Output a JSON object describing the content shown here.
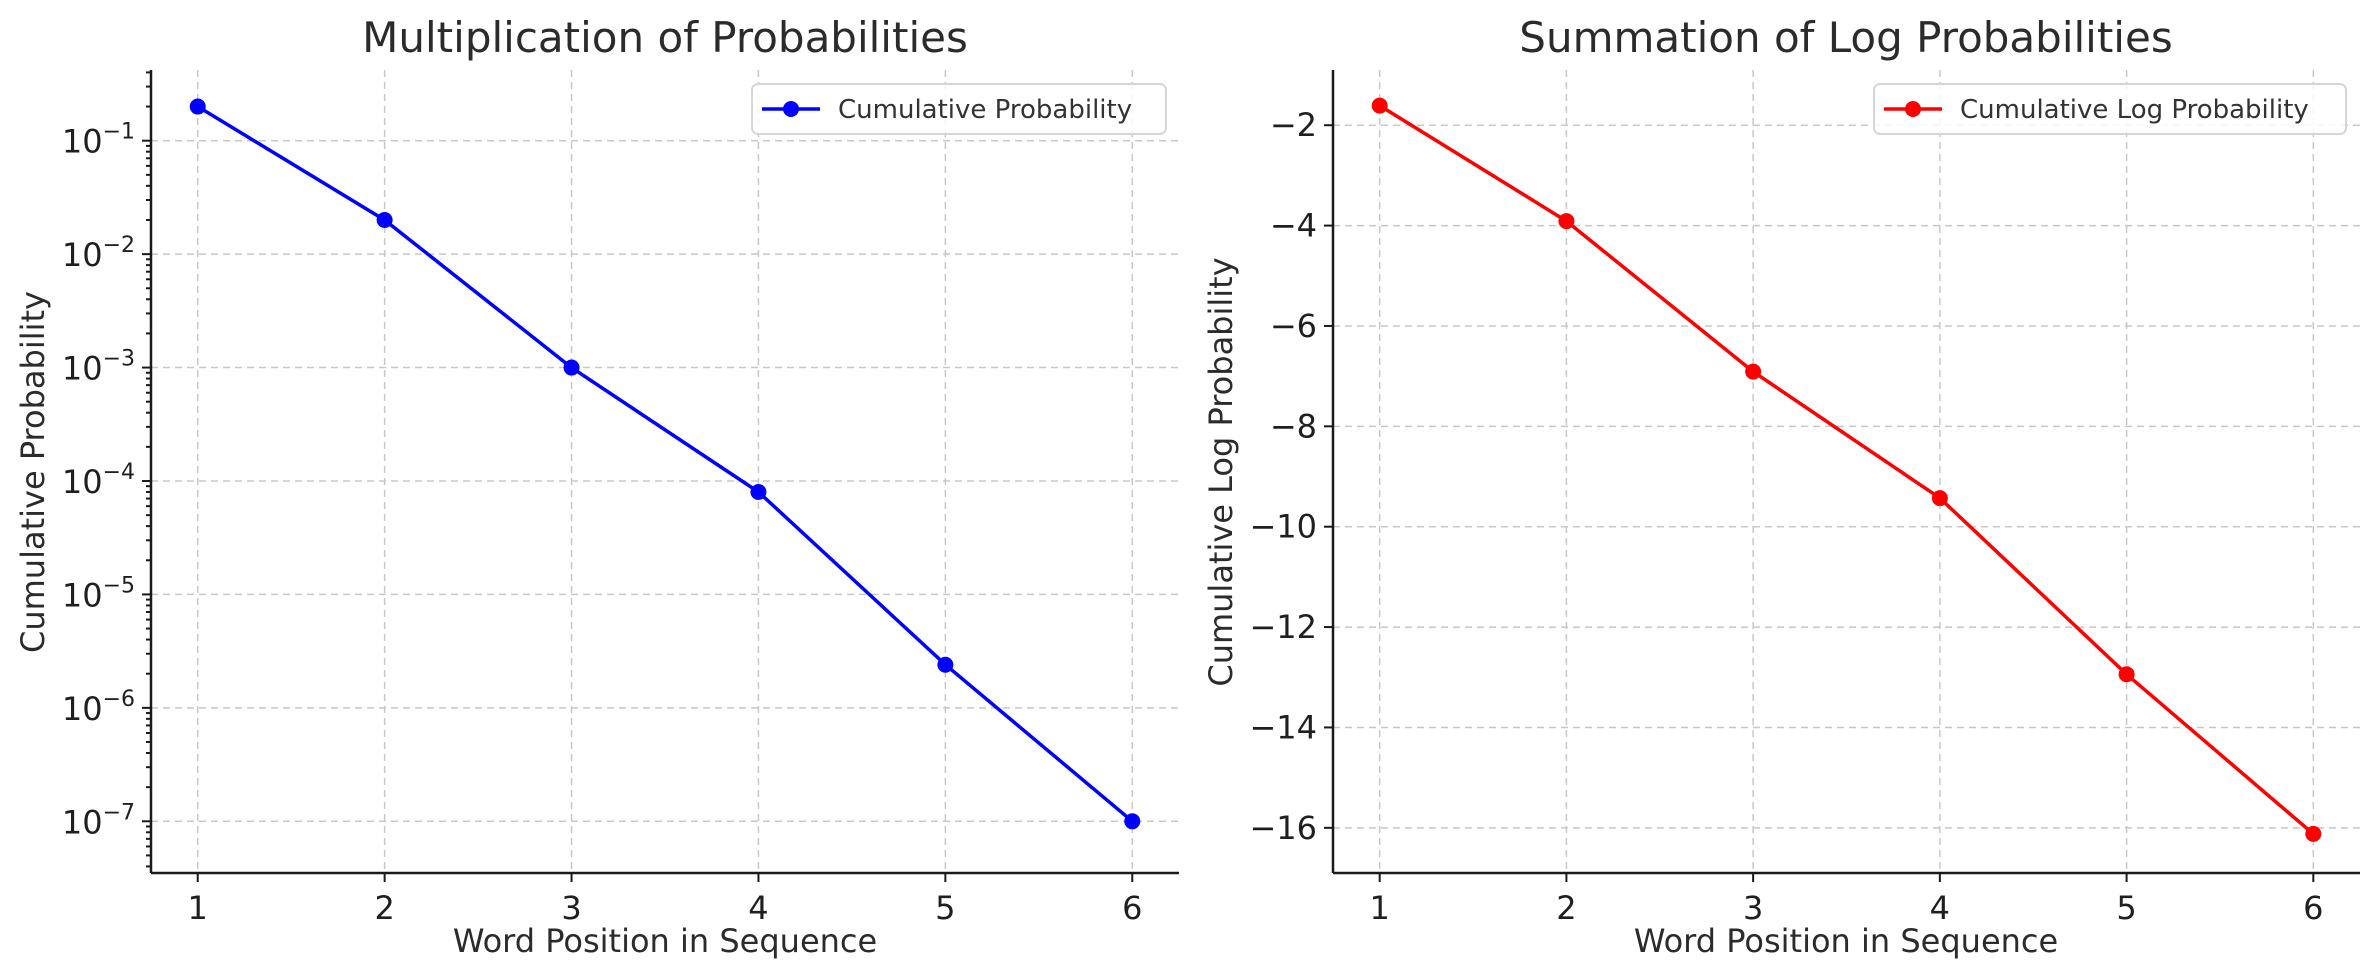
{
  "chart_data": [
    {
      "type": "line",
      "title": "Multiplication of Probabilities",
      "xlabel": "Word Position in Sequence",
      "ylabel": "Cumulative Probability",
      "yscale": "log",
      "x": [
        1,
        2,
        3,
        4,
        5,
        6
      ],
      "xlim": [
        0.75,
        6.25
      ],
      "ylim": [
        3.5e-08,
        0.42
      ],
      "grid": true,
      "legend_position": "top-right",
      "series": [
        {
          "name": "Cumulative Probability",
          "color": "#0000ff",
          "marker": "circle",
          "values": [
            0.2,
            0.02,
            0.001,
            8e-05,
            2.4e-06,
            1e-07
          ]
        }
      ],
      "x_ticks": [
        {
          "v": 1,
          "label": "1"
        },
        {
          "v": 2,
          "label": "2"
        },
        {
          "v": 3,
          "label": "3"
        },
        {
          "v": 4,
          "label": "4"
        },
        {
          "v": 5,
          "label": "5"
        },
        {
          "v": 6,
          "label": "6"
        }
      ],
      "y_ticks": [
        {
          "v": 0.1,
          "base": "10",
          "exp": "−1"
        },
        {
          "v": 0.01,
          "base": "10",
          "exp": "−2"
        },
        {
          "v": 0.001,
          "base": "10",
          "exp": "−3"
        },
        {
          "v": 0.0001,
          "base": "10",
          "exp": "−4"
        },
        {
          "v": 1e-05,
          "base": "10",
          "exp": "−5"
        },
        {
          "v": 1e-06,
          "base": "10",
          "exp": "−6"
        },
        {
          "v": 1e-07,
          "base": "10",
          "exp": "−7"
        }
      ]
    },
    {
      "type": "line",
      "title": "Summation of Log Probabilities",
      "xlabel": "Word Position in Sequence",
      "ylabel": "Cumulative Log Probability",
      "yscale": "linear",
      "x": [
        1,
        2,
        3,
        4,
        5,
        6
      ],
      "xlim": [
        0.75,
        6.25
      ],
      "ylim": [
        -16.9,
        -0.9
      ],
      "grid": true,
      "legend_position": "top-right",
      "series": [
        {
          "name": "Cumulative Log Probability",
          "color": "#ff0000",
          "marker": "circle",
          "values": [
            -1.61,
            -3.91,
            -6.91,
            -9.43,
            -12.94,
            -16.12
          ]
        }
      ],
      "x_ticks": [
        {
          "v": 1,
          "label": "1"
        },
        {
          "v": 2,
          "label": "2"
        },
        {
          "v": 3,
          "label": "3"
        },
        {
          "v": 4,
          "label": "4"
        },
        {
          "v": 5,
          "label": "5"
        },
        {
          "v": 6,
          "label": "6"
        }
      ],
      "y_ticks": [
        {
          "v": -2,
          "label": "−2"
        },
        {
          "v": -4,
          "label": "−4"
        },
        {
          "v": -6,
          "label": "−6"
        },
        {
          "v": -8,
          "label": "−8"
        },
        {
          "v": -10,
          "label": "−10"
        },
        {
          "v": -12,
          "label": "−12"
        },
        {
          "v": -14,
          "label": "−14"
        },
        {
          "v": -16,
          "label": "−16"
        }
      ]
    }
  ]
}
